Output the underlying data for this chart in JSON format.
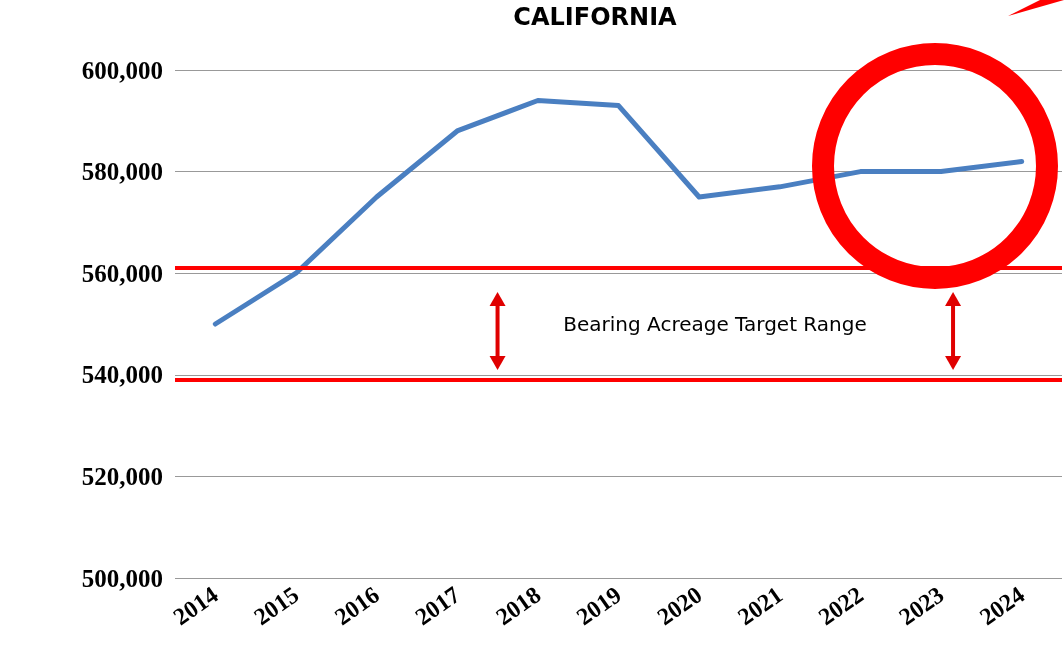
{
  "chart_data": {
    "type": "line",
    "title": "CALIFORNIA",
    "categories": [
      "2014",
      "2015",
      "2016",
      "2017",
      "2018",
      "2019",
      "2020",
      "2021",
      "2022",
      "2023",
      "2024"
    ],
    "series": [
      {
        "color": "#4a7fc1",
        "values": [
          550000,
          560000,
          575000,
          588000,
          594000,
          593000,
          575000,
          577000,
          580000,
          580000,
          582000
        ]
      }
    ],
    "ylim": [
      500000,
      600000
    ],
    "yticks": [
      {
        "value": 500000,
        "label": "500,000"
      },
      {
        "value": 520000,
        "label": "520,000"
      },
      {
        "value": 540000,
        "label": "540,000"
      },
      {
        "value": 560000,
        "label": "560,000"
      },
      {
        "value": 580000,
        "label": "580,000"
      },
      {
        "value": 600000,
        "label": "600,000"
      }
    ],
    "grid": "y",
    "marker": "none",
    "line_style": "solid",
    "ref_lines": [
      {
        "axis": "y",
        "value": 561000,
        "color": "#ff0000"
      },
      {
        "axis": "y",
        "value": 539000,
        "color": "#ff0000"
      }
    ],
    "annotations": [
      "Bearing Acreage Target Range"
    ]
  }
}
